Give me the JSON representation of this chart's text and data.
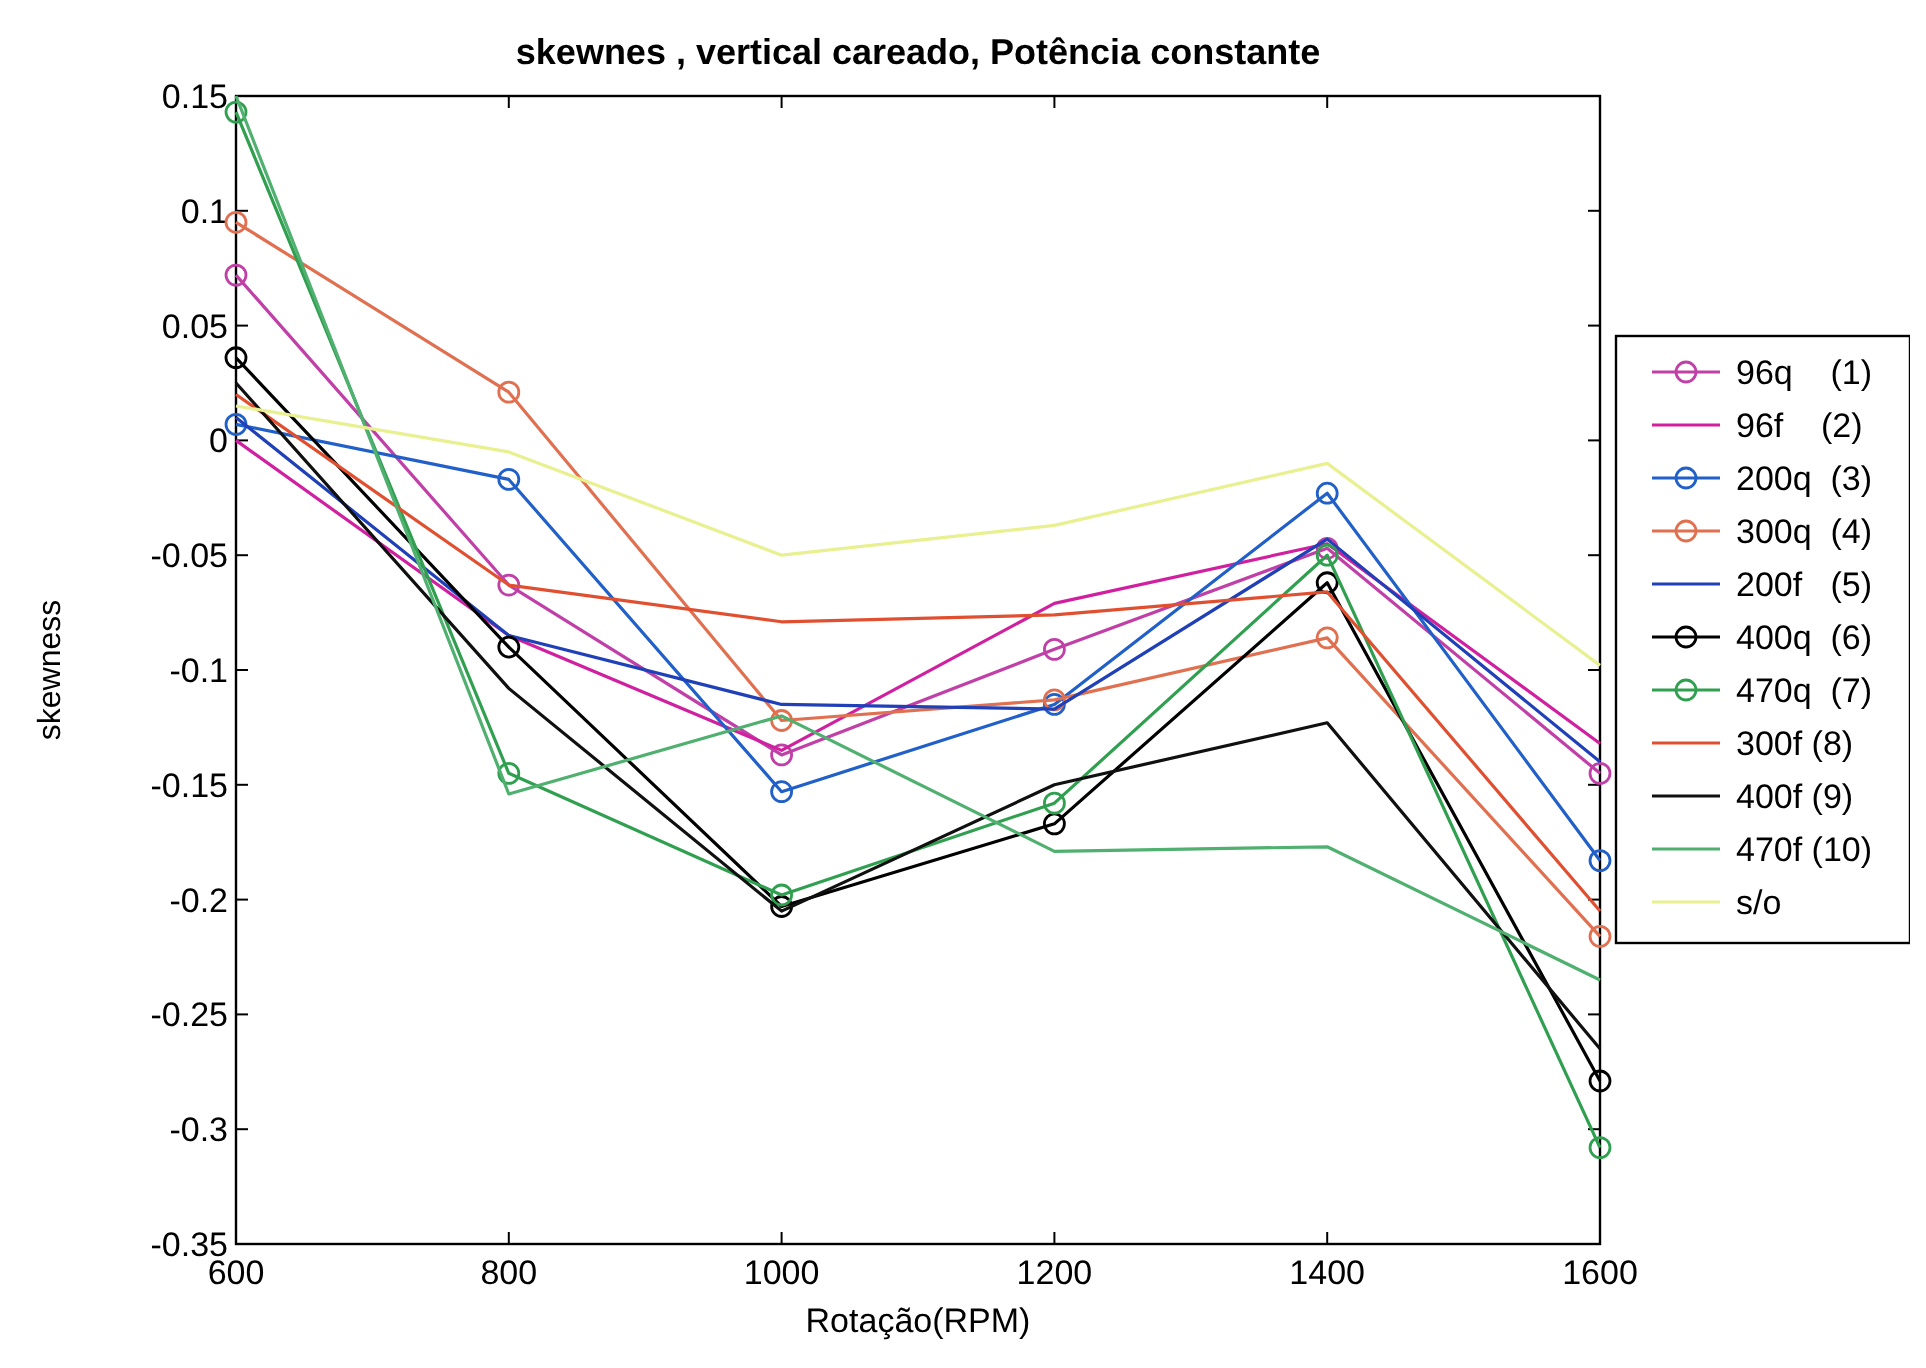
{
  "chart_data": {
    "type": "line",
    "title": "skewnes , vertical careado, Potência constante",
    "xlabel": "Rotação(RPM)",
    "ylabel": "skewness",
    "x": [
      600,
      800,
      1000,
      1200,
      1400,
      1600
    ],
    "xlim": [
      600,
      1600
    ],
    "xticks": [
      600,
      800,
      1000,
      1200,
      1400,
      1600
    ],
    "ylim": [
      -0.35,
      0.15
    ],
    "yticks": [
      -0.35,
      -0.3,
      -0.25,
      -0.2,
      -0.15,
      -0.1,
      -0.05,
      0,
      0.05,
      0.1,
      0.15
    ],
    "grid": false,
    "legend": "right",
    "line_style": "solid",
    "series": [
      {
        "name": "96q    (1)",
        "color": "#c040a8",
        "marker": "circle",
        "values": [
          0.072,
          -0.063,
          -0.137,
          -0.091,
          -0.047,
          -0.145
        ]
      },
      {
        "name": "96f    (2)",
        "color": "#d020a0",
        "marker": "none",
        "values": [
          0.0,
          -0.085,
          -0.135,
          -0.071,
          -0.045,
          -0.132
        ]
      },
      {
        "name": "200q  (3)",
        "color": "#2060c8",
        "marker": "circle",
        "values": [
          0.007,
          -0.017,
          -0.153,
          -0.115,
          -0.023,
          -0.183
        ]
      },
      {
        "name": "300q  (4)",
        "color": "#e07050",
        "marker": "circle",
        "values": [
          0.095,
          0.021,
          -0.122,
          -0.113,
          -0.086,
          -0.216
        ]
      },
      {
        "name": "200f   (5)",
        "color": "#2040b8",
        "marker": "none",
        "values": [
          0.01,
          -0.085,
          -0.115,
          -0.117,
          -0.043,
          -0.14
        ]
      },
      {
        "name": "400q  (6)",
        "color": "#000000",
        "marker": "circle",
        "values": [
          0.036,
          -0.09,
          -0.203,
          -0.167,
          -0.062,
          -0.279
        ]
      },
      {
        "name": "470q  (7)",
        "color": "#30a050",
        "marker": "circle",
        "values": [
          0.143,
          -0.145,
          -0.198,
          -0.158,
          -0.05,
          -0.308
        ]
      },
      {
        "name": "300f (8)",
        "color": "#e05030",
        "marker": "none",
        "values": [
          0.02,
          -0.063,
          -0.079,
          -0.076,
          -0.066,
          -0.205
        ]
      },
      {
        "name": "400f (9)",
        "color": "#101010",
        "marker": "none",
        "values": [
          0.025,
          -0.108,
          -0.205,
          -0.15,
          -0.123,
          -0.265
        ]
      },
      {
        "name": "470f (10)",
        "color": "#50b070",
        "marker": "none",
        "values": [
          0.15,
          -0.154,
          -0.12,
          -0.179,
          -0.177,
          -0.235
        ]
      },
      {
        "name": "s/o",
        "color": "#e8f090",
        "marker": "none",
        "values": [
          0.015,
          -0.005,
          -0.05,
          -0.037,
          -0.01,
          -0.098
        ]
      }
    ]
  }
}
